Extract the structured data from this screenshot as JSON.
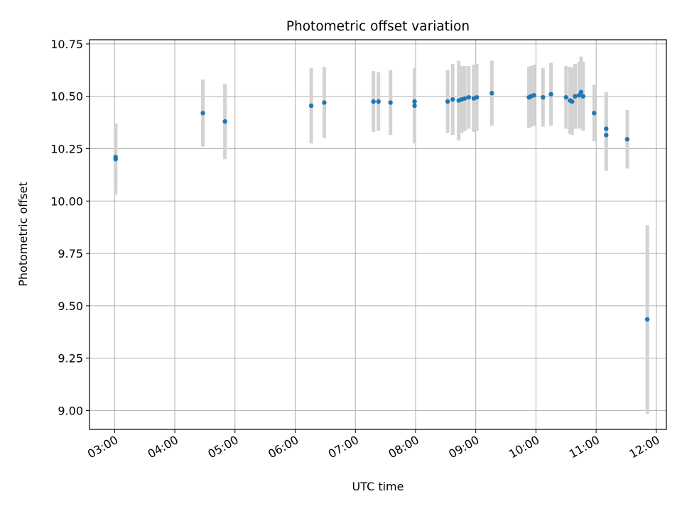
{
  "chart_data": {
    "type": "scatter",
    "title": "Photometric offset variation",
    "xlabel": "UTC time",
    "ylabel": "Photometric offset",
    "x_tick_labels": [
      "03:00",
      "04:00",
      "05:00",
      "06:00",
      "07:00",
      "08:00",
      "09:00",
      "10:00",
      "11:00",
      "12:00"
    ],
    "y_ticks": [
      9.0,
      9.25,
      9.5,
      9.75,
      10.0,
      10.25,
      10.5,
      10.75
    ],
    "y_tick_labels": [
      "9.00",
      "9.25",
      "9.50",
      "9.75",
      "10.00",
      "10.25",
      "10.50",
      "10.75"
    ],
    "xlim": [
      "02:35",
      "12:10"
    ],
    "ylim": [
      8.91,
      10.77
    ],
    "grid": true,
    "colors": {
      "point": "#1f77b4",
      "errorbar": "#d3d3d3",
      "grid": "#b0b0b0"
    },
    "points": [
      {
        "x": "03:01",
        "y": 10.21,
        "err": 0.16
      },
      {
        "x": "03:01",
        "y": 10.2,
        "err": 0.17
      },
      {
        "x": "04:28",
        "y": 10.42,
        "err": 0.16
      },
      {
        "x": "04:50",
        "y": 10.38,
        "err": 0.18
      },
      {
        "x": "06:16",
        "y": 10.455,
        "err": 0.18
      },
      {
        "x": "06:29",
        "y": 10.47,
        "err": 0.17
      },
      {
        "x": "07:18",
        "y": 10.475,
        "err": 0.145
      },
      {
        "x": "07:23",
        "y": 10.475,
        "err": 0.14
      },
      {
        "x": "07:35",
        "y": 10.47,
        "err": 0.155
      },
      {
        "x": "07:59",
        "y": 10.475,
        "err": 0.16
      },
      {
        "x": "07:59",
        "y": 10.455,
        "err": 0.18
      },
      {
        "x": "08:32",
        "y": 10.475,
        "err": 0.15
      },
      {
        "x": "08:37",
        "y": 10.485,
        "err": 0.17
      },
      {
        "x": "08:43",
        "y": 10.48,
        "err": 0.19
      },
      {
        "x": "08:46",
        "y": 10.485,
        "err": 0.16
      },
      {
        "x": "08:49",
        "y": 10.49,
        "err": 0.155
      },
      {
        "x": "08:53",
        "y": 10.495,
        "err": 0.15
      },
      {
        "x": "08:58",
        "y": 10.49,
        "err": 0.16
      },
      {
        "x": "09:01",
        "y": 10.495,
        "err": 0.16
      },
      {
        "x": "09:16",
        "y": 10.515,
        "err": 0.155
      },
      {
        "x": "09:53",
        "y": 10.495,
        "err": 0.145
      },
      {
        "x": "09:55",
        "y": 10.5,
        "err": 0.145
      },
      {
        "x": "09:58",
        "y": 10.505,
        "err": 0.145
      },
      {
        "x": "10:07",
        "y": 10.495,
        "err": 0.14
      },
      {
        "x": "10:15",
        "y": 10.51,
        "err": 0.15
      },
      {
        "x": "10:30",
        "y": 10.495,
        "err": 0.15
      },
      {
        "x": "10:34",
        "y": 10.48,
        "err": 0.16
      },
      {
        "x": "10:36",
        "y": 10.475,
        "err": 0.16
      },
      {
        "x": "10:39",
        "y": 10.5,
        "err": 0.155
      },
      {
        "x": "10:43",
        "y": 10.505,
        "err": 0.16
      },
      {
        "x": "10:45",
        "y": 10.52,
        "err": 0.17
      },
      {
        "x": "10:47",
        "y": 10.5,
        "err": 0.165
      },
      {
        "x": "10:58",
        "y": 10.42,
        "err": 0.135
      },
      {
        "x": "11:10",
        "y": 10.345,
        "err": 0.175
      },
      {
        "x": "11:10",
        "y": 10.315,
        "err": 0.17
      },
      {
        "x": "11:31",
        "y": 10.295,
        "err": 0.14
      },
      {
        "x": "11:51",
        "y": 9.435,
        "err": 0.45
      }
    ]
  }
}
